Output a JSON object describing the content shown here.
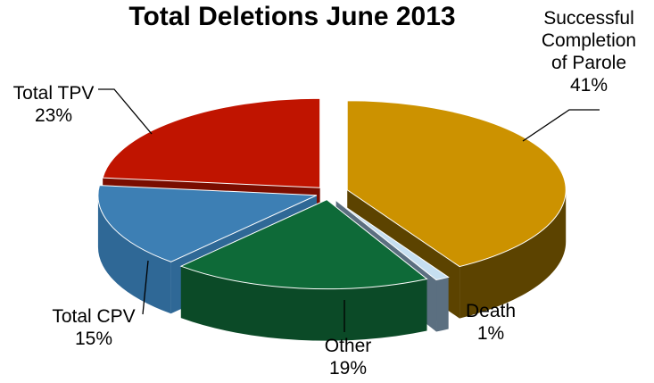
{
  "chart_data": {
    "type": "pie",
    "title": "Total Deletions June 2013",
    "slices": [
      {
        "label_lines": [
          "Successful",
          "Completion",
          "of Parole"
        ],
        "pct_label": "41%",
        "value": 41,
        "color": "#cc9200",
        "side": "#5c4300"
      },
      {
        "label_lines": [
          "Death"
        ],
        "pct_label": "1%",
        "value": 1,
        "color": "#c6dff0",
        "side": "#5b6f80"
      },
      {
        "label_lines": [
          "Other"
        ],
        "pct_label": "19%",
        "value": 19,
        "color": "#0e6a38",
        "side": "#0b4a27"
      },
      {
        "label_lines": [
          "Total CPV"
        ],
        "pct_label": "15%",
        "value": 15,
        "color": "#3d7fb4",
        "side": "#2f6896"
      },
      {
        "label_lines": [
          "Total TPV"
        ],
        "pct_label": "23%",
        "value": 23,
        "color": "#c01400",
        "side": "#7a0d00"
      }
    ]
  }
}
